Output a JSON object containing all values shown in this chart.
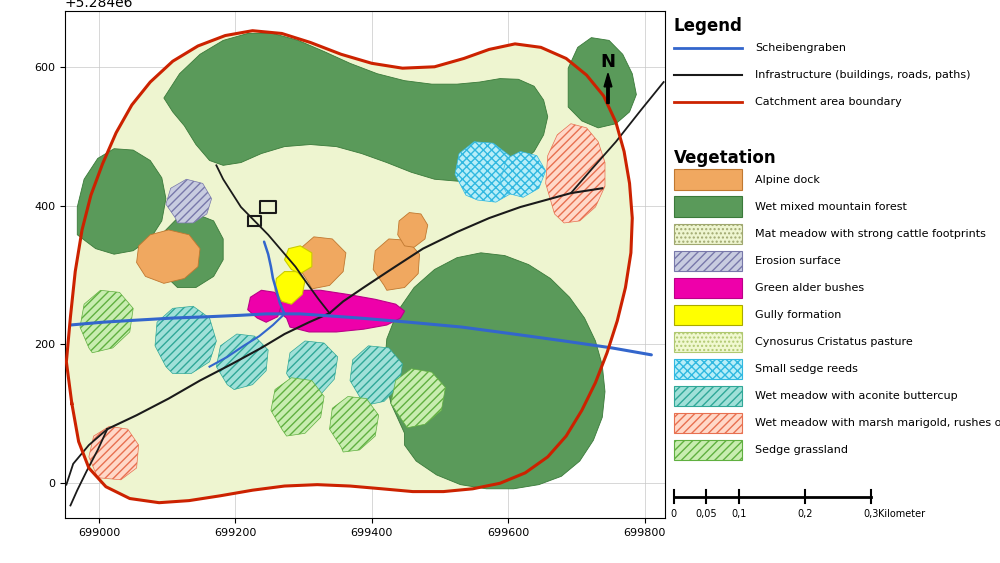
{
  "map_xlim": [
    698950,
    699830
  ],
  "map_ylim": [
    5283950,
    5284680
  ],
  "background_color": "#ffffff",
  "grid_color": "#c8c8c8",
  "xticks": [
    699000,
    699200,
    699400,
    699600,
    699800
  ],
  "yticks": [
    5284000,
    5284200,
    5284400,
    5284600
  ],
  "colors": {
    "alpine_dock": "#f0a860",
    "alpine_dock_edge": "#c07830",
    "wet_forest": "#5a9a5a",
    "wet_forest_edge": "#3a7a3a",
    "mat_meadow_bg": "#eef5d0",
    "erosion_bg": "#c8cce0",
    "erosion_hatch_color": "#7878aa",
    "green_alder": "#ee00aa",
    "gully": "#ffff00",
    "cynosurus_bg": "#f0f8d0",
    "small_sedge_bg": "#b8eef8",
    "small_sedge_hatch_color": "#30b8e0",
    "wet_aconite_bg": "#a0e0d8",
    "wet_aconite_hatch_color": "#30a898",
    "wet_marsh_bg": "#ffd8c8",
    "wet_marsh_hatch_color": "#e87050",
    "sedge_bg": "#c8edb0",
    "sedge_hatch_color": "#60b040",
    "stream": "#3366cc",
    "infrastructure": "#1a1a1a",
    "catchment": "#cc2200"
  }
}
